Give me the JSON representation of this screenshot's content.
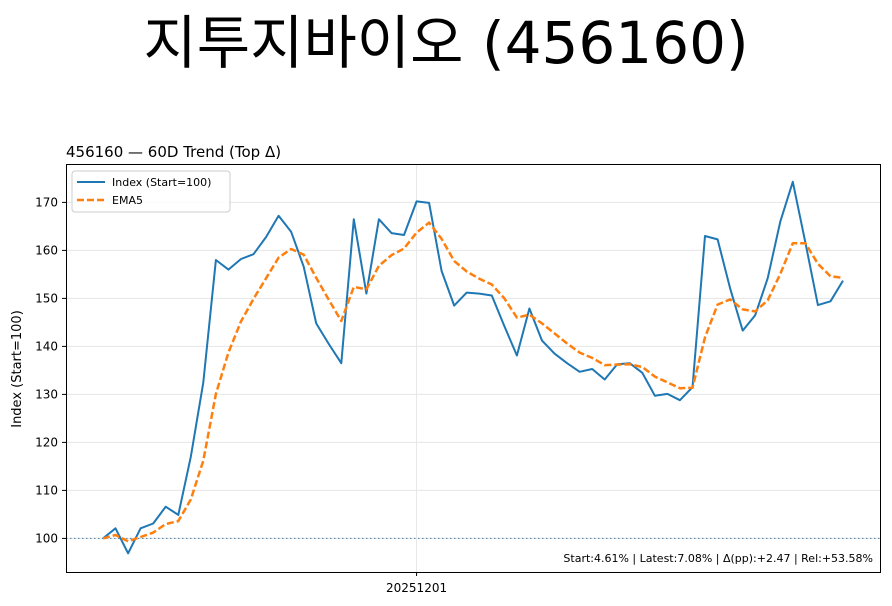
{
  "page_title": "지투지바이오 (456160)",
  "chart_data": {
    "type": "line",
    "title": "456160 — 60D Trend (Top Δ)",
    "xlabel": "",
    "ylabel": "Index (Start=100)",
    "ylim": [
      93,
      178
    ],
    "yticks": [
      100,
      110,
      120,
      130,
      140,
      150,
      160,
      170
    ],
    "xtick_labels": [
      {
        "index": 25,
        "label": "20251201"
      }
    ],
    "baseline": 100,
    "grid": true,
    "legend_position": "top-left",
    "series": [
      {
        "name": "Index (Start=100)",
        "color": "#1f77b4",
        "style": "solid",
        "values": [
          100.0,
          102.1,
          96.9,
          102.1,
          103.1,
          106.6,
          104.9,
          117.0,
          132.5,
          158.0,
          156.0,
          158.2,
          159.2,
          162.8,
          167.2,
          163.9,
          156.6,
          144.8,
          140.5,
          136.5,
          166.5,
          151.0,
          166.5,
          163.6,
          163.2,
          170.2,
          169.9,
          155.7,
          148.5,
          151.2,
          151.0,
          150.6,
          144.2,
          138.1,
          147.9,
          141.2,
          138.5,
          136.5,
          134.7,
          135.3,
          133.1,
          136.3,
          136.5,
          134.5,
          129.7,
          130.1,
          128.8,
          131.5,
          163.0,
          162.3,
          152.1,
          143.3,
          146.5,
          154.2,
          166.0,
          174.3,
          161.6,
          148.6,
          149.4,
          153.7
        ]
      },
      {
        "name": "EMA5",
        "color": "#ff7f0e",
        "style": "dashed",
        "values": [
          100.0,
          100.7,
          99.4,
          100.3,
          101.2,
          103.0,
          103.6,
          108.1,
          116.2,
          130.1,
          138.7,
          145.2,
          149.9,
          154.2,
          158.5,
          160.3,
          159.1,
          154.3,
          149.7,
          145.3,
          152.4,
          151.9,
          156.8,
          159.0,
          160.4,
          163.7,
          165.8,
          162.4,
          157.8,
          155.6,
          154.1,
          152.9,
          150.0,
          146.0,
          146.6,
          144.8,
          142.7,
          140.6,
          138.7,
          137.6,
          136.1,
          136.2,
          136.3,
          135.7,
          133.7,
          132.5,
          131.3,
          131.4,
          141.9,
          148.7,
          149.8,
          147.7,
          147.3,
          149.6,
          155.1,
          161.5,
          161.5,
          157.2,
          154.6,
          154.3
        ]
      }
    ],
    "footer_stats": "Start:4.61% | Latest:7.08% | Δ(pp):+2.47 | Rel:+53.58%"
  }
}
